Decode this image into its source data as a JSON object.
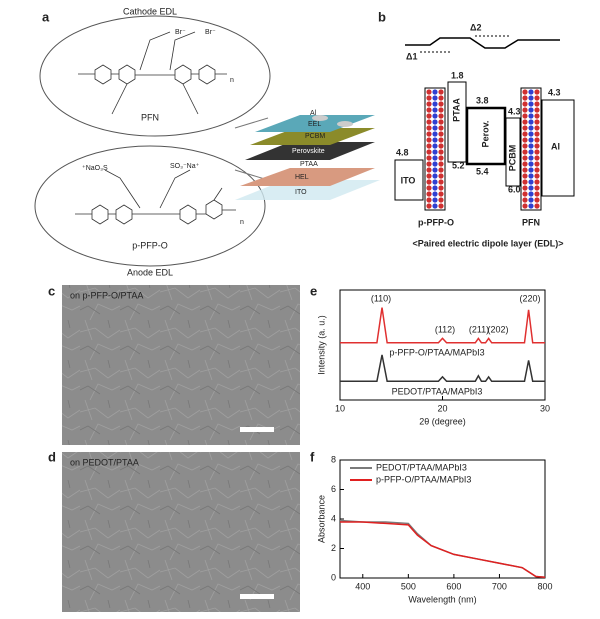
{
  "panel_labels": [
    "a",
    "b",
    "c",
    "d",
    "e",
    "f"
  ],
  "panel_a": {
    "cathode_title": "Cathode EDL",
    "anode_title": "Anode EDL",
    "top_polymer": "PFN",
    "bottom_polymer": "p-PFP-O",
    "top_atoms": [
      "Br⁻",
      "Br⁻",
      "n"
    ],
    "bottom_atoms": [
      "⁺NaO₃S",
      "SO₃⁻Na⁺",
      "n"
    ],
    "device_layers": [
      "Al",
      "EEL",
      "PCBM",
      "Perovskite",
      "PTAA",
      "HEL",
      "ITO"
    ]
  },
  "panel_b": {
    "deltas": [
      "Δ1",
      "Δ2"
    ],
    "levels": [
      "1.8",
      "3.8",
      "4.3",
      "4.3",
      "4.8",
      "5.2",
      "5.4",
      "6.0"
    ],
    "materials": [
      "ITO",
      "PTAA",
      "Perov.",
      "PCBM",
      "Al"
    ],
    "dipole_layers": [
      "p-PFP-O",
      "PFN"
    ],
    "caption": "<Paired electric dipole layer (EDL)>"
  },
  "panel_c": {
    "label": "on p-PFP-O/PTAA"
  },
  "panel_d": {
    "label": "on PEDOT/PTAA"
  },
  "chart_data": [
    {
      "type": "line",
      "xlabel": "2θ (degree)",
      "ylabel": "Intensity (a. u.)",
      "x": [
        10,
        13.6,
        14.1,
        14.6,
        19.6,
        20,
        20.4,
        23.2,
        23.5,
        23.8,
        24.2,
        24.5,
        24.8,
        28,
        28.4,
        28.8,
        30
      ],
      "xlim": [
        10,
        30
      ],
      "xticks": [
        10,
        20,
        30
      ],
      "ylim": [
        0,
        10
      ],
      "annotations": [
        "(110)",
        "(112)",
        "(211)",
        "(202)",
        "(220)"
      ],
      "series": [
        {
          "name": "p-PFP-O/PTAA/MAPbI3",
          "color": "#e03030",
          "values": [
            5.2,
            5.2,
            8.4,
            5.2,
            5.2,
            5.6,
            5.2,
            5.2,
            5.6,
            5.2,
            5.2,
            5.6,
            5.2,
            5.2,
            8.2,
            5.2,
            5.2
          ]
        },
        {
          "name": "PEDOT/PTAA/MAPbI3",
          "color": "#333333",
          "values": [
            1.7,
            1.7,
            4.1,
            1.7,
            1.7,
            2.1,
            1.7,
            1.7,
            2.2,
            1.7,
            1.7,
            2.1,
            1.7,
            1.7,
            3.6,
            1.7,
            1.7
          ]
        }
      ]
    },
    {
      "type": "line",
      "xlabel": "Wavelength (nm)",
      "ylabel": "Absorbance",
      "x": [
        350,
        400,
        450,
        500,
        520,
        550,
        600,
        650,
        700,
        750,
        760,
        780,
        800
      ],
      "xlim": [
        350,
        800
      ],
      "xticks": [
        400,
        500,
        600,
        700,
        800
      ],
      "ylim": [
        0,
        8
      ],
      "yticks": [
        0,
        2,
        4,
        6,
        8
      ],
      "series": [
        {
          "name": "PEDOT/PTAA/MAPbI3",
          "color": "#7a7a7a",
          "values": [
            3.9,
            3.8,
            3.8,
            3.7,
            3.0,
            2.2,
            1.6,
            1.3,
            1.0,
            0.7,
            0.5,
            0.1,
            0.05
          ]
        },
        {
          "name": "p-PFP-O/PTAA/MAPbI3",
          "color": "#e02020",
          "values": [
            3.8,
            3.8,
            3.7,
            3.6,
            2.9,
            2.2,
            1.6,
            1.3,
            1.0,
            0.7,
            0.5,
            0.1,
            0.05
          ]
        }
      ]
    }
  ]
}
